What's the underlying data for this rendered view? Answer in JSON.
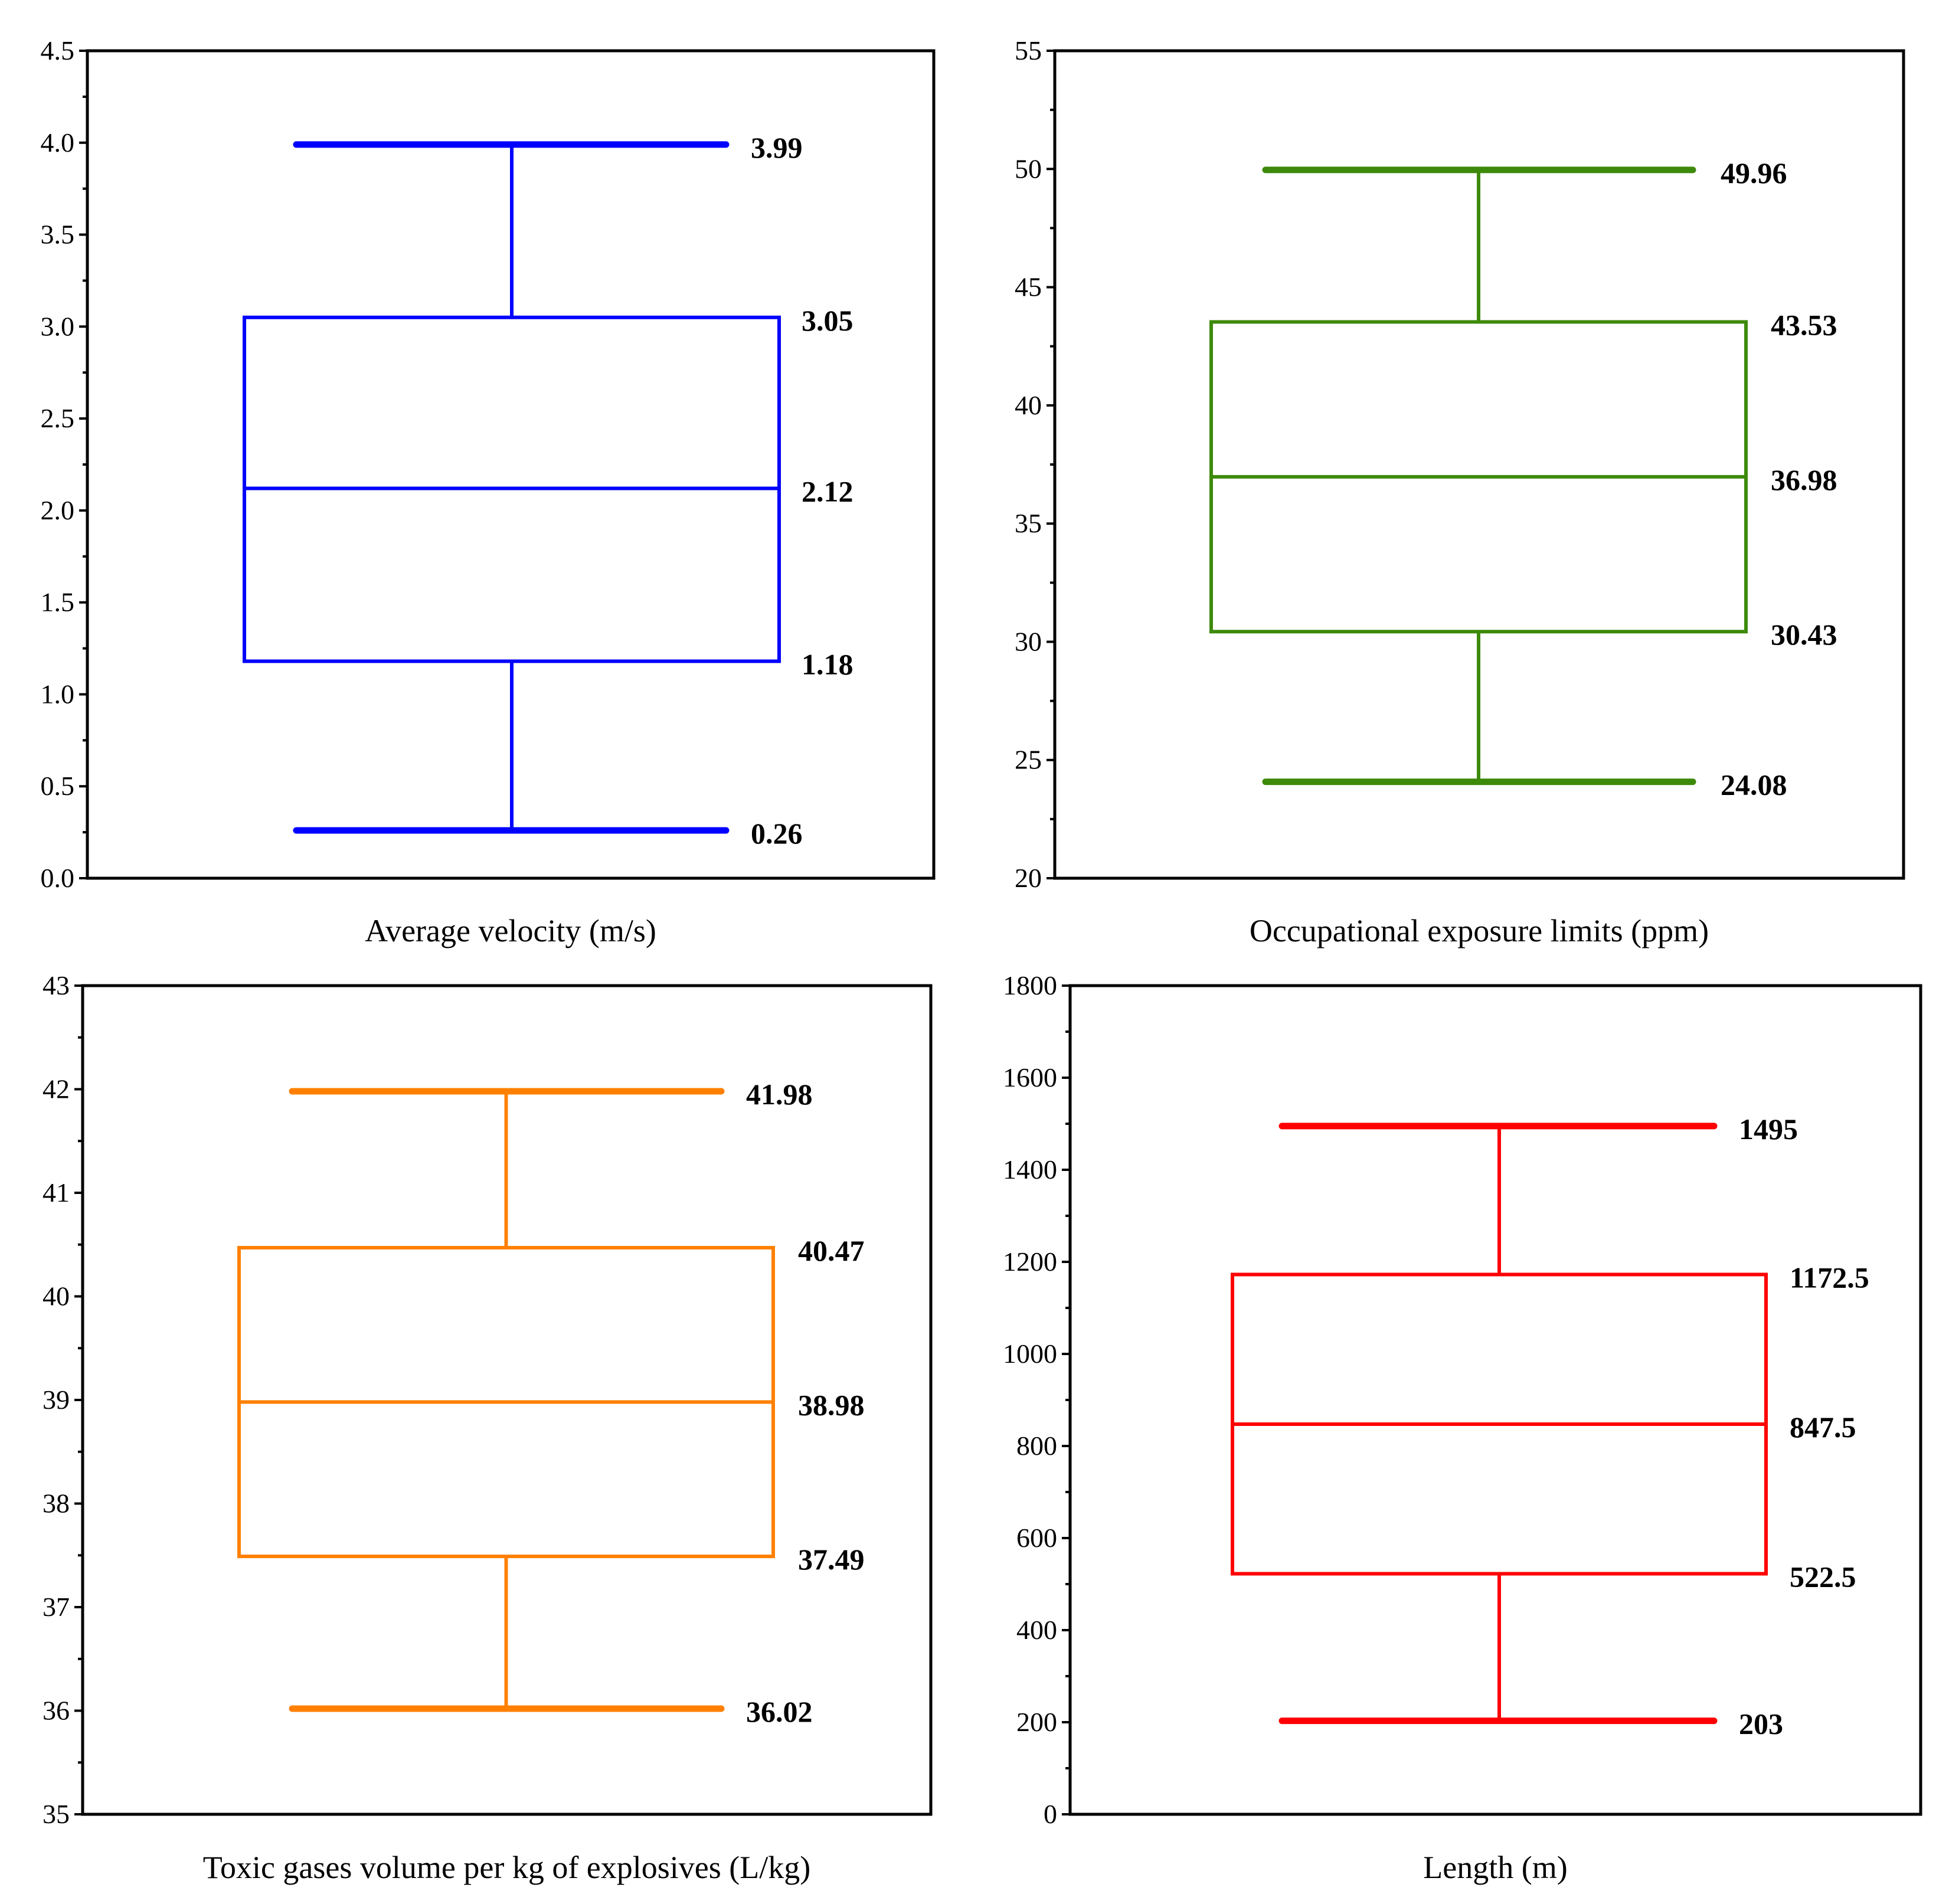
{
  "chart_data": [
    {
      "type": "box",
      "xlabel": "Average velocity (m/s)",
      "ylim": [
        0,
        4.5
      ],
      "yticks": [
        "0.0",
        "0.5",
        "1.0",
        "1.5",
        "2.0",
        "2.5",
        "3.0",
        "3.5",
        "4.0",
        "4.5"
      ],
      "minor_ticks": true,
      "color": "#0000ff",
      "stats": {
        "max": 3.99,
        "q3": 3.05,
        "median": 2.12,
        "q1": 1.18,
        "min": 0.26
      },
      "labels": {
        "max": "3.99",
        "q3": "3.05",
        "median": "2.12",
        "q1": "1.18",
        "min": "0.26"
      }
    },
    {
      "type": "box",
      "xlabel": "Occupational exposure limits (ppm)",
      "ylim": [
        20,
        55
      ],
      "yticks": [
        "20",
        "25",
        "30",
        "35",
        "40",
        "45",
        "50",
        "55"
      ],
      "minor_ticks": true,
      "color": "#3d8a0a",
      "stats": {
        "max": 49.96,
        "q3": 43.53,
        "median": 36.98,
        "q1": 30.43,
        "min": 24.08
      },
      "labels": {
        "max": "49.96",
        "q3": "43.53",
        "median": "36.98",
        "q1": "30.43",
        "min": "24.08"
      }
    },
    {
      "type": "box",
      "xlabel": "Toxic gases volume per kg of explosives (L/kg)",
      "ylim": [
        35,
        43
      ],
      "yticks": [
        "35",
        "36",
        "37",
        "38",
        "39",
        "40",
        "41",
        "42",
        "43"
      ],
      "minor_ticks": true,
      "color": "#ff8000",
      "stats": {
        "max": 41.98,
        "q3": 40.47,
        "median": 38.98,
        "q1": 37.49,
        "min": 36.02
      },
      "labels": {
        "max": "41.98",
        "q3": "40.47",
        "median": "38.98",
        "q1": "37.49",
        "min": "36.02"
      }
    },
    {
      "type": "box",
      "xlabel": "Length (m)",
      "ylim": [
        0,
        1800
      ],
      "yticks": [
        "0",
        "200",
        "400",
        "600",
        "800",
        "1000",
        "1200",
        "1400",
        "1600",
        "1800"
      ],
      "minor_ticks": true,
      "color": "#ff0000",
      "stats": {
        "max": 1495,
        "q3": 1172.5,
        "median": 847.5,
        "q1": 522.5,
        "min": 203
      },
      "labels": {
        "max": "1495",
        "q3": "1172.5",
        "median": "847.5",
        "q1": "522.5",
        "min": "203"
      }
    }
  ]
}
